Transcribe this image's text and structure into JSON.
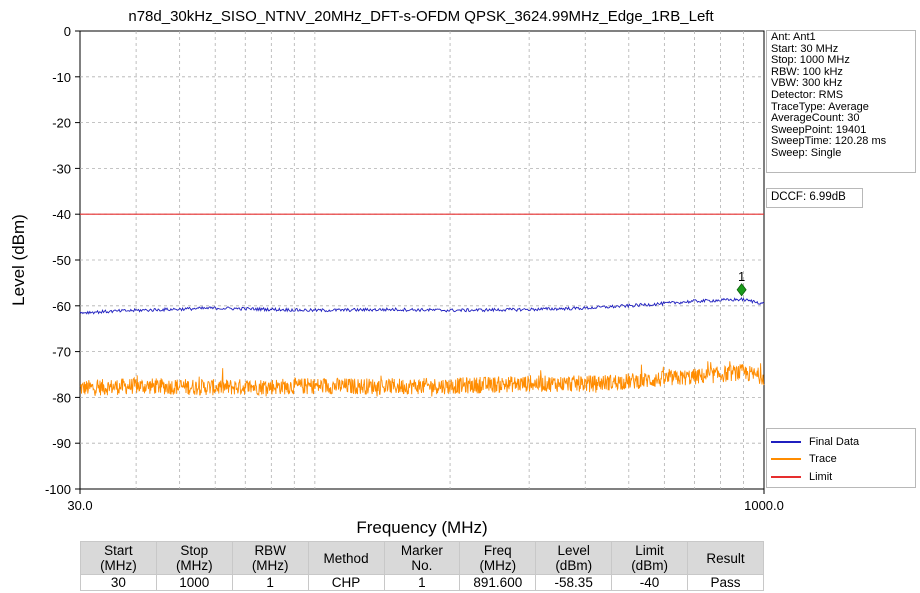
{
  "chart_data": {
    "type": "line",
    "title": "n78d_30kHz_SISO_NTNV_20MHz_DFT-s-OFDM QPSK_3624.99MHz_Edge_1RB_Left",
    "xlabel": "Frequency (MHz)",
    "ylabel": "Level (dBm)",
    "x_scale": "log",
    "xlim": [
      30,
      1000
    ],
    "ylim": [
      -100,
      0
    ],
    "x_tick_labels": [
      "30.0",
      "1000.0"
    ],
    "y_ticks": [
      0,
      -10,
      -20,
      -30,
      -40,
      -50,
      -60,
      -70,
      -80,
      -90,
      -100
    ],
    "grid": true,
    "legend_position": "bottom-right",
    "series": [
      {
        "name": "Final Data",
        "color": "#1f1fbf",
        "x": [
          30,
          40,
          60,
          100,
          150,
          200,
          300,
          400,
          500,
          600,
          700,
          800,
          891.6,
          1000
        ],
        "y": [
          -61.5,
          -61,
          -60.5,
          -61,
          -60.8,
          -61,
          -60.8,
          -60.5,
          -60,
          -59.5,
          -59,
          -58.8,
          -58.6,
          -59.5
        ]
      },
      {
        "name": "Trace",
        "color": "#ff8c00",
        "x": [
          30,
          40,
          60,
          100,
          150,
          200,
          300,
          400,
          500,
          600,
          700,
          800,
          891.6,
          1000
        ],
        "y": [
          -78,
          -77.5,
          -77.8,
          -77.5,
          -77.6,
          -77.5,
          -77,
          -77,
          -76.5,
          -76,
          -75.5,
          -75,
          -74.5,
          -75.5
        ]
      },
      {
        "name": "Limit",
        "color": "#e62e2e",
        "x": [
          30,
          1000
        ],
        "y": [
          -40,
          -40
        ]
      }
    ],
    "markers": [
      {
        "label": "1",
        "x": 891.6,
        "y": -56.5,
        "color": "#1a9c1a"
      }
    ]
  },
  "info": {
    "lines": [
      "Ant: Ant1",
      "Start: 30 MHz",
      "Stop: 1000 MHz",
      "RBW: 100 kHz",
      "VBW: 300 kHz",
      "Detector: RMS",
      "TraceType: Average",
      "AverageCount: 30",
      "SweepPoint: 19401",
      "SweepTime: 120.28 ms",
      "Sweep: Single"
    ]
  },
  "dccf": "DCCF: 6.99dB",
  "results_table": {
    "headers": [
      [
        "Start",
        "(MHz)"
      ],
      [
        "Stop",
        "(MHz)"
      ],
      [
        "RBW",
        "(MHz)"
      ],
      [
        "Method",
        ""
      ],
      [
        "Marker",
        "No."
      ],
      [
        "Freq",
        "(MHz)"
      ],
      [
        "Level",
        "(dBm)"
      ],
      [
        "Limit",
        "(dBm)"
      ],
      [
        "Result",
        ""
      ]
    ],
    "row": [
      "30",
      "1000",
      "1",
      "CHP",
      "1",
      "891.600",
      "-58.35",
      "-40",
      "Pass"
    ]
  }
}
